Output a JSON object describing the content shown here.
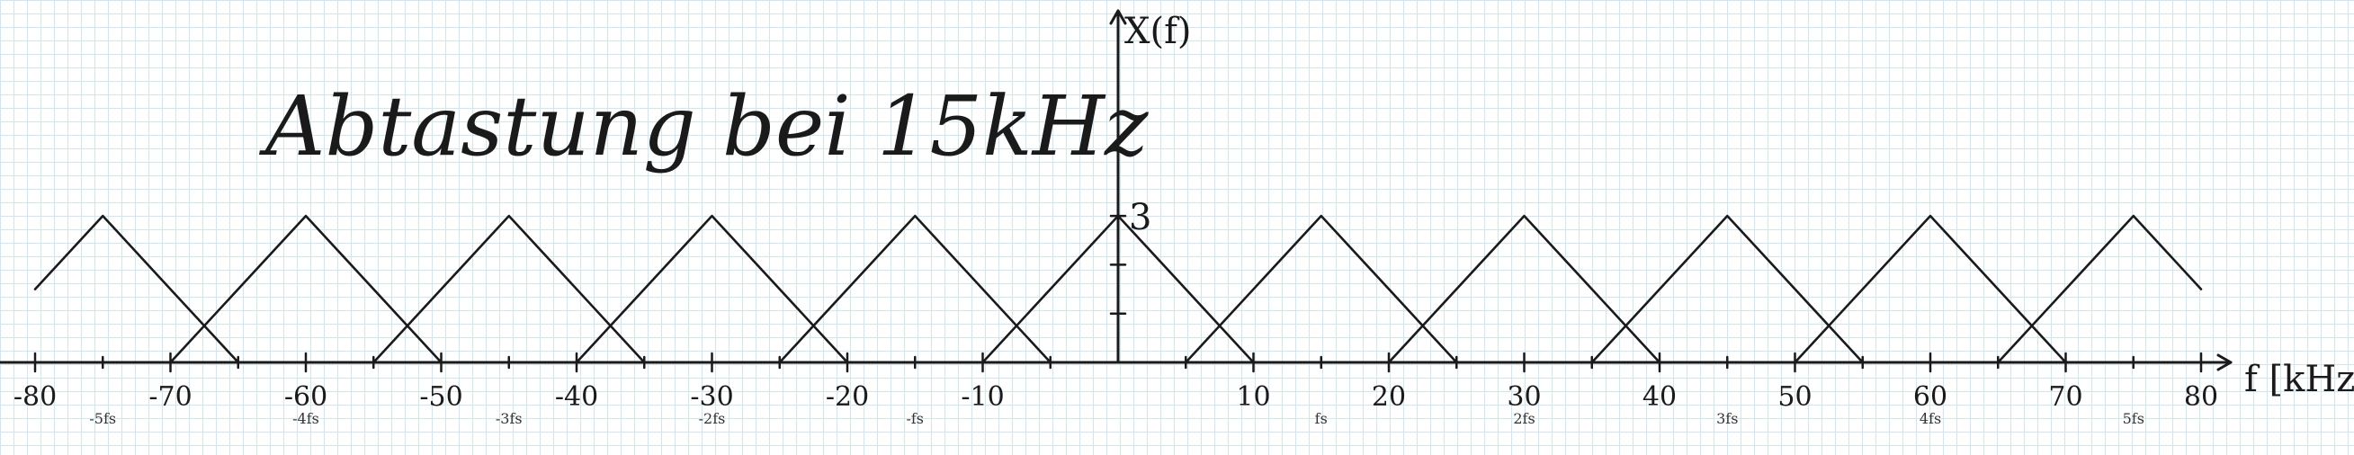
{
  "chart_data": {
    "type": "line",
    "title": "Abtastung bei 15kHz",
    "xlabel": "f [kHz]",
    "ylabel": "X(f)",
    "peak_label": "3",
    "xlim": [
      -80,
      80
    ],
    "ylim": [
      0,
      3
    ],
    "series": [
      {
        "values": [
          [
            -80,
            1.5
          ],
          [
            -75,
            3
          ],
          [
            -70,
            1.5
          ],
          [
            -65,
            0
          ]
        ]
      },
      {
        "values": [
          [
            -70,
            0
          ],
          [
            -60,
            3
          ],
          [
            -50,
            0
          ]
        ]
      },
      {
        "values": [
          [
            -55,
            0
          ],
          [
            -45,
            3
          ],
          [
            -35,
            0
          ]
        ]
      },
      {
        "values": [
          [
            -40,
            0
          ],
          [
            -30,
            3
          ],
          [
            -20,
            0
          ]
        ]
      },
      {
        "values": [
          [
            -25,
            0
          ],
          [
            -15,
            3
          ],
          [
            -5,
            0
          ]
        ]
      },
      {
        "values": [
          [
            -10,
            0
          ],
          [
            0,
            3
          ],
          [
            10,
            0
          ]
        ]
      },
      {
        "values": [
          [
            5,
            0
          ],
          [
            15,
            3
          ],
          [
            25,
            0
          ]
        ]
      },
      {
        "values": [
          [
            20,
            0
          ],
          [
            30,
            3
          ],
          [
            40,
            0
          ]
        ]
      },
      {
        "values": [
          [
            35,
            0
          ],
          [
            45,
            3
          ],
          [
            55,
            0
          ]
        ]
      },
      {
        "values": [
          [
            50,
            0
          ],
          [
            60,
            3
          ],
          [
            70,
            0
          ]
        ]
      },
      {
        "values": [
          [
            65,
            0
          ],
          [
            75,
            3
          ],
          [
            80,
            1.5
          ]
        ]
      }
    ],
    "tick_labels": [
      {
        "x": -80,
        "text": "-80"
      },
      {
        "x": -70,
        "text": "-70"
      },
      {
        "x": -60,
        "text": "-60"
      },
      {
        "x": -50,
        "text": "-50"
      },
      {
        "x": -40,
        "text": "-40"
      },
      {
        "x": -30,
        "text": "-30"
      },
      {
        "x": -20,
        "text": "-20"
      },
      {
        "x": -10,
        "text": "-10"
      },
      {
        "x": 10,
        "text": "10"
      },
      {
        "x": 20,
        "text": "20"
      },
      {
        "x": 30,
        "text": "30"
      },
      {
        "x": 40,
        "text": "40"
      },
      {
        "x": 50,
        "text": "50"
      },
      {
        "x": 60,
        "text": "60"
      },
      {
        "x": 70,
        "text": "70"
      },
      {
        "x": 80,
        "text": "80"
      }
    ],
    "small_labels": [
      {
        "x": -75,
        "text": "-5fs"
      },
      {
        "x": -60,
        "text": "-4fs"
      },
      {
        "x": -45,
        "text": "-3fs"
      },
      {
        "x": -30,
        "text": "-2fs"
      },
      {
        "x": -15,
        "text": "-fs"
      },
      {
        "x": 15,
        "text": "fs"
      },
      {
        "x": 30,
        "text": "2fs"
      },
      {
        "x": 45,
        "text": "3fs"
      },
      {
        "x": 60,
        "text": "4fs"
      },
      {
        "x": 75,
        "text": "5fs"
      }
    ],
    "grid": true,
    "colors": {
      "ink": "#1a1a1a",
      "grid": "#cfe6f3"
    }
  }
}
